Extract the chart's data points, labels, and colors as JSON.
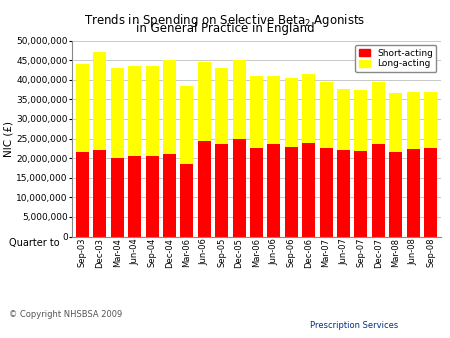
{
  "title": "Trends in Spending on Selective Beta$_2$ Agonists\nin General Practice in England",
  "ylabel": "NIC (£)",
  "xlabel": "Quarter to",
  "categories": [
    "Sep-03",
    "Dec-03",
    "Mar-04",
    "Jun-04",
    "Sep-04",
    "Dec-04",
    "Mar-06",
    "Jun-06",
    "Sep-05",
    "Dec-05",
    "Mar-06",
    "Jun-06",
    "Sep-06",
    "Dec-06",
    "Mar-07",
    "Jun-07",
    "Sep-07",
    "Dec-07",
    "Mar-08",
    "Jun-08",
    "Sep-08"
  ],
  "short_acting": [
    21500000,
    22000000,
    20000000,
    20500000,
    20500000,
    21000000,
    18500000,
    24500000,
    23500000,
    25000000,
    22500000,
    23500000,
    22800000,
    23800000,
    22500000,
    22200000,
    21800000,
    23500000,
    21500000,
    22300000,
    22500000
  ],
  "long_acting": [
    22500000,
    25000000,
    23000000,
    23000000,
    23000000,
    24000000,
    20000000,
    20000000,
    19500000,
    20000000,
    18500000,
    17500000,
    17700000,
    17700000,
    17000000,
    15500000,
    15700000,
    16000000,
    15000000,
    14700000,
    14500000
  ],
  "short_color": "#FF0000",
  "long_color": "#FFFF00",
  "bg_color": "#FFFFFF",
  "grid_color": "#C0C0C0",
  "ylim": [
    0,
    50000000
  ],
  "yticks": [
    0,
    5000000,
    10000000,
    15000000,
    20000000,
    25000000,
    30000000,
    35000000,
    40000000,
    45000000,
    50000000
  ],
  "ytick_labels": [
    "0",
    "5,000,000",
    "10,000,000",
    "15,000,000",
    "20,000,000",
    "25,000,000",
    "30,000,000",
    "35,000,000",
    "40,000,000",
    "45,000,000",
    "50,000,000"
  ],
  "legend_short": "Short-acting",
  "legend_long": "Long-acting",
  "copyright": "© Copyright NHSBSA 2009",
  "bar_width": 0.75,
  "tick_labels": [
    "Sep-03",
    "Dec-03",
    "Mar-04",
    "Jun-04",
    "Sep-04",
    "Dec-04",
    "Mar-06",
    "Jun-06",
    "Sep-05",
    "Dec-05",
    "Mar-06",
    "Jun-06",
    "Sep-06",
    "Dec-06",
    "Mar-07",
    "Jun-07",
    "Sep-07",
    "Dec-07",
    "Mar-08",
    "Jun-08",
    "Sep-08"
  ]
}
